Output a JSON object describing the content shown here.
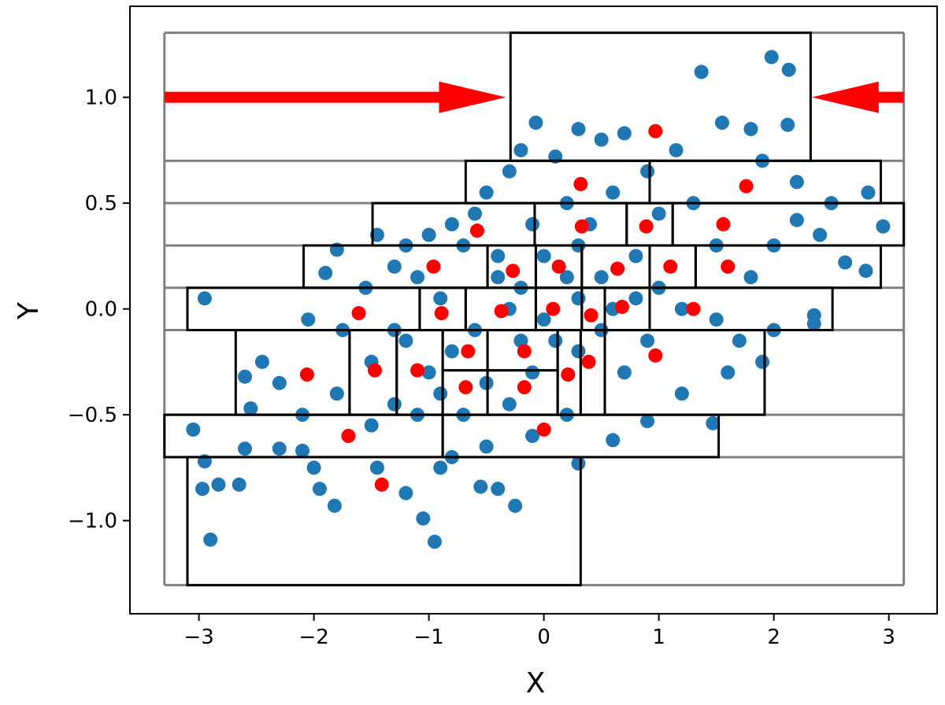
{
  "chart_data": {
    "type": "scatter",
    "xlabel": "X",
    "ylabel": "Y",
    "xlim": [
      -3.6,
      3.42
    ],
    "ylim": [
      -1.44,
      1.43
    ],
    "xticks": [
      {
        "value": -3,
        "label": "−3"
      },
      {
        "value": -2,
        "label": "−2"
      },
      {
        "value": -1,
        "label": "−1"
      },
      0,
      1,
      2,
      3
    ],
    "yticks": [
      {
        "value": -1.0,
        "label": "−1.0"
      },
      {
        "value": -0.5,
        "label": "−0.5"
      },
      {
        "value": 0.0,
        "label": "0.0"
      },
      0.5,
      {
        "value": 1.0,
        "label": "1.0"
      }
    ],
    "band_color": "#808080",
    "band_xlim": [
      -3.3,
      3.13
    ],
    "band_edges": [
      -1.305,
      -0.7,
      -0.5,
      -0.1,
      0.1,
      0.3,
      0.5,
      0.7,
      1.305
    ],
    "box_color": "#000000",
    "boxes": [
      [
        -0.29,
        2.32,
        0.7,
        1.305
      ],
      [
        -0.68,
        0.92,
        0.5,
        0.7
      ],
      [
        0.92,
        2.93,
        0.5,
        0.7
      ],
      [
        -1.49,
        -0.08,
        0.3,
        0.5
      ],
      [
        -0.08,
        0.72,
        0.3,
        0.5
      ],
      [
        0.72,
        1.12,
        0.3,
        0.5
      ],
      [
        1.12,
        3.13,
        0.3,
        0.5
      ],
      [
        -2.09,
        -0.49,
        0.1,
        0.3
      ],
      [
        -0.49,
        -0.07,
        0.1,
        0.3
      ],
      [
        -0.07,
        0.33,
        0.1,
        0.3
      ],
      [
        0.33,
        0.92,
        0.1,
        0.3
      ],
      [
        0.92,
        1.32,
        0.1,
        0.3
      ],
      [
        1.32,
        2.93,
        0.1,
        0.3
      ],
      [
        -3.1,
        -1.08,
        -0.1,
        0.1
      ],
      [
        -1.08,
        -0.68,
        -0.1,
        0.1
      ],
      [
        -0.68,
        -0.07,
        -0.1,
        0.1
      ],
      [
        -0.07,
        0.33,
        -0.1,
        0.1
      ],
      [
        0.33,
        0.53,
        -0.1,
        0.1
      ],
      [
        0.53,
        0.92,
        -0.1,
        0.1
      ],
      [
        0.92,
        2.51,
        -0.1,
        0.1
      ],
      [
        -2.68,
        -1.69,
        -0.5,
        -0.1
      ],
      [
        -1.69,
        -1.28,
        -0.5,
        -0.1
      ],
      [
        -1.28,
        -0.88,
        -0.5,
        -0.1
      ],
      [
        -0.88,
        -0.49,
        -0.29,
        -0.1
      ],
      [
        -0.49,
        0.12,
        -0.29,
        -0.1
      ],
      [
        -0.88,
        -0.49,
        -0.5,
        -0.29
      ],
      [
        -0.49,
        0.12,
        -0.5,
        -0.29
      ],
      [
        0.12,
        0.32,
        -0.5,
        -0.1
      ],
      [
        0.32,
        0.53,
        -0.5,
        -0.1
      ],
      [
        0.53,
        1.92,
        -0.5,
        -0.1
      ],
      [
        -3.3,
        -0.88,
        -0.7,
        -0.5
      ],
      [
        -0.88,
        1.52,
        -0.7,
        -0.5
      ],
      [
        -3.1,
        0.32,
        -1.305,
        -0.7
      ]
    ],
    "arrows": [
      {
        "x": [
          -3.3,
          -0.33
        ],
        "y": 1.0,
        "color": "#ff0000"
      },
      {
        "x": [
          3.13,
          2.33
        ],
        "y": 1.0,
        "color": "#ff0000"
      }
    ],
    "series": [
      {
        "color": "#1f77b4",
        "x": [
          -2.95,
          -3.05,
          -2.95,
          -2.97,
          -2.9,
          -2.83,
          -2.65,
          -2.6,
          -2.55,
          -2.6,
          -2.45,
          -2.3,
          -2.3,
          -2.1,
          -2.0,
          -1.95,
          -1.82,
          -1.8,
          -1.9,
          -2.05,
          -1.75,
          -1.55,
          -1.45,
          -1.3,
          -1.2,
          -1.1,
          -1.0,
          -0.8,
          -0.7,
          -0.6,
          -0.5,
          -0.3,
          -0.2,
          -0.07,
          0.1,
          0.3,
          0.5,
          0.7,
          0.9,
          1.15,
          1.37,
          1.55,
          1.8,
          1.98,
          2.13,
          2.12,
          1.9,
          2.2,
          2.5,
          2.82,
          2.95,
          2.8,
          2.62,
          2.4,
          2.2,
          2.0,
          1.8,
          1.5,
          1.3,
          1.0,
          0.6,
          0.2,
          -0.1,
          -0.4,
          -0.2,
          0.0,
          0.3,
          0.5,
          0.8,
          1.0,
          1.2,
          1.5,
          1.7,
          2.0,
          2.35,
          2.35,
          1.9,
          1.6,
          1.47,
          1.2,
          0.9,
          0.6,
          0.3,
          0.2,
          -0.1,
          -0.25,
          -0.4,
          -0.55,
          -0.5,
          -0.8,
          -0.9,
          -0.95,
          -1.05,
          -1.2,
          -1.45,
          -1.5,
          -1.3,
          -1.1,
          -0.9,
          -0.7,
          -0.5,
          -0.3,
          -0.1,
          0.1,
          0.3,
          0.5,
          0.7,
          0.9,
          0.6,
          0.3,
          0.0,
          -0.3,
          -0.6,
          -0.9,
          -1.2,
          -1.5,
          -1.8,
          -2.1,
          -1.3,
          -0.4,
          0.2,
          0.8,
          -0.8,
          -0.2,
          0.4,
          -1.0
        ],
        "values": [
          0.05,
          -0.57,
          -0.72,
          -0.85,
          -1.09,
          -0.83,
          -0.83,
          -0.66,
          -0.47,
          -0.32,
          -0.25,
          -0.35,
          -0.66,
          -0.67,
          -0.75,
          -0.85,
          -0.93,
          0.28,
          0.17,
          -0.05,
          -0.1,
          0.1,
          0.35,
          0.2,
          0.3,
          0.15,
          0.35,
          0.4,
          0.3,
          0.45,
          0.55,
          0.65,
          0.75,
          0.88,
          0.72,
          0.85,
          0.8,
          0.83,
          0.65,
          0.75,
          1.12,
          0.88,
          0.85,
          1.19,
          1.13,
          0.87,
          0.7,
          0.6,
          0.5,
          0.55,
          0.39,
          0.18,
          0.22,
          0.35,
          0.42,
          0.3,
          0.15,
          0.3,
          0.5,
          0.45,
          0.55,
          0.5,
          0.4,
          0.25,
          0.1,
          0.25,
          0.3,
          0.15,
          0.25,
          0.1,
          0.0,
          -0.05,
          -0.15,
          -0.1,
          -0.03,
          -0.07,
          -0.25,
          -0.3,
          -0.54,
          -0.4,
          -0.53,
          -0.62,
          -0.73,
          -0.5,
          -0.6,
          -0.93,
          -0.85,
          -0.84,
          -0.65,
          -0.7,
          -0.75,
          -1.1,
          -0.99,
          -0.87,
          -0.75,
          -0.55,
          -0.45,
          -0.5,
          -0.4,
          -0.5,
          -0.35,
          -0.45,
          -0.3,
          -0.15,
          -0.2,
          -0.1,
          -0.3,
          -0.15,
          0.0,
          0.05,
          -0.05,
          0.0,
          -0.1,
          0.05,
          -0.15,
          -0.25,
          -0.4,
          -0.5,
          -0.1,
          0.15,
          0.15,
          0.05,
          -0.2,
          -0.15,
          0.4,
          -0.3
        ]
      },
      {
        "color": "#ff0000",
        "x": [
          0.97,
          0.32,
          1.76,
          -0.58,
          0.33,
          0.89,
          1.56,
          -0.96,
          -0.27,
          0.13,
          0.64,
          1.1,
          1.6,
          -1.61,
          -0.89,
          -0.37,
          0.08,
          0.41,
          0.68,
          1.3,
          -0.66,
          -0.17,
          0.39,
          0.97,
          -2.06,
          -1.47,
          -1.1,
          -0.68,
          -0.17,
          0.21,
          -1.7,
          -1.41,
          0.0
        ],
        "values": [
          0.84,
          0.59,
          0.58,
          0.37,
          0.39,
          0.39,
          0.4,
          0.2,
          0.18,
          0.2,
          0.19,
          0.2,
          0.2,
          -0.02,
          -0.02,
          -0.01,
          0.0,
          -0.03,
          0.01,
          0.0,
          -0.2,
          -0.2,
          -0.25,
          -0.22,
          -0.31,
          -0.29,
          -0.29,
          -0.37,
          -0.37,
          -0.31,
          -0.6,
          -0.83,
          -0.57
        ]
      }
    ]
  }
}
